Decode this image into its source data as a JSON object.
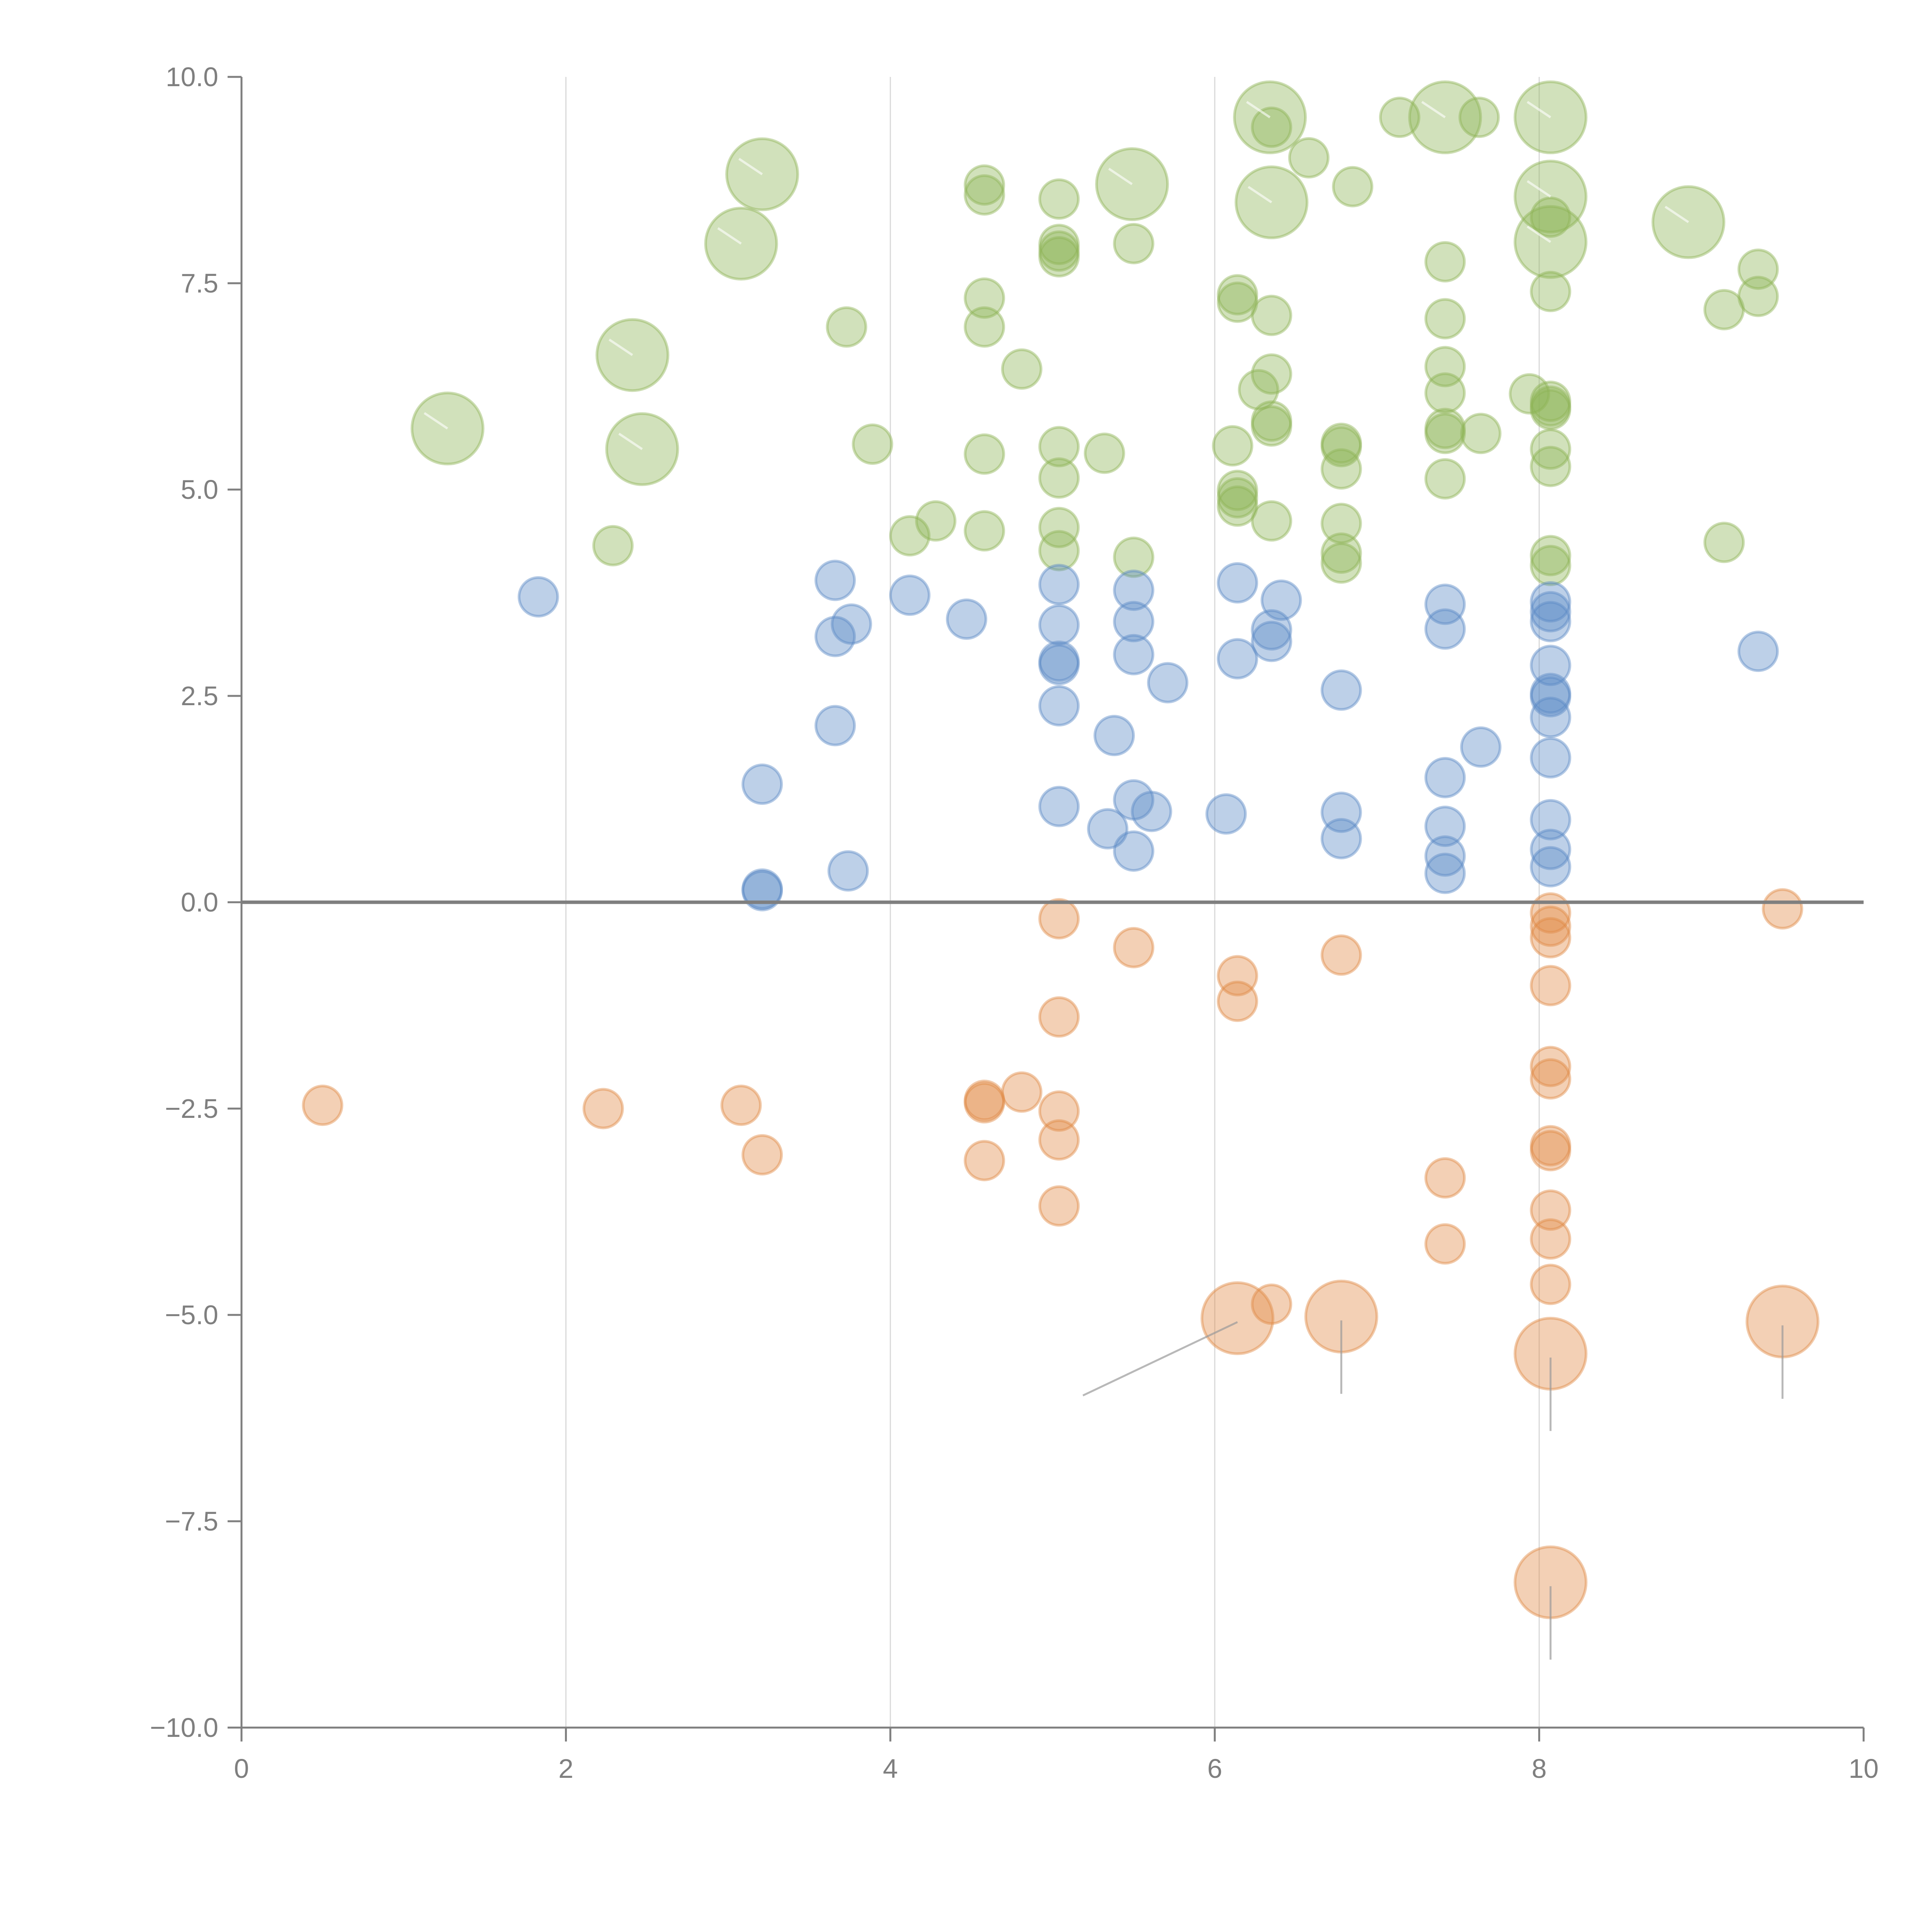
{
  "chart_data": {
    "type": "scatter",
    "title": "",
    "xlabel": "",
    "ylabel": "",
    "xlim": [
      0,
      10
    ],
    "ylim": [
      -10,
      10
    ],
    "x_ticks": [
      "0",
      "2",
      "4",
      "6",
      "8",
      "10"
    ],
    "x_tick_values": [
      0,
      2,
      4,
      6,
      8,
      10
    ],
    "y_ticks": [
      "10.0",
      "7.5",
      "5.0",
      "2.5",
      "0.0",
      "−2.5",
      "−5.0",
      "−7.5",
      "−10.0"
    ],
    "y_tick_values": [
      10,
      7.5,
      5,
      2.5,
      0,
      -2.5,
      -5,
      -7.5,
      -10
    ],
    "grid": "vertical",
    "reference_line_y": 0,
    "legend": "none",
    "point_format": [
      "x",
      "y",
      "size_class"
    ],
    "series": [
      {
        "name": "green",
        "color": "#8db356",
        "points": [
          [
            2.29,
            4.32,
            1
          ],
          [
            3.73,
            6.97,
            1
          ],
          [
            3.89,
            5.55,
            1
          ],
          [
            4.12,
            4.44,
            1
          ],
          [
            4.28,
            4.62,
            1
          ],
          [
            4.58,
            8.69,
            1
          ],
          [
            4.58,
            8.57,
            1
          ],
          [
            4.58,
            7.32,
            1
          ],
          [
            4.58,
            6.97,
            1
          ],
          [
            4.58,
            5.43,
            1
          ],
          [
            4.58,
            4.5,
            1
          ],
          [
            4.81,
            6.46,
            1
          ],
          [
            5.04,
            8.52,
            1
          ],
          [
            5.04,
            7.97,
            1
          ],
          [
            5.04,
            7.89,
            1
          ],
          [
            5.04,
            7.82,
            1
          ],
          [
            5.04,
            5.52,
            1
          ],
          [
            5.04,
            5.14,
            1
          ],
          [
            5.04,
            4.54,
            1
          ],
          [
            5.04,
            4.26,
            1
          ],
          [
            5.32,
            5.44,
            1
          ],
          [
            5.5,
            7.98,
            1
          ],
          [
            5.5,
            4.18,
            1
          ],
          [
            6.11,
            5.53,
            1
          ],
          [
            6.14,
            7.36,
            1
          ],
          [
            6.14,
            7.27,
            1
          ],
          [
            6.14,
            4.99,
            1
          ],
          [
            6.14,
            4.9,
            1
          ],
          [
            6.14,
            4.8,
            1
          ],
          [
            6.35,
            7.11,
            1
          ],
          [
            6.35,
            6.4,
            1
          ],
          [
            6.27,
            6.21,
            1
          ],
          [
            6.35,
            5.83,
            1
          ],
          [
            6.35,
            5.77,
            1
          ],
          [
            6.35,
            4.62,
            1
          ],
          [
            6.35,
            9.39,
            1
          ],
          [
            6.58,
            9.02,
            1
          ],
          [
            6.85,
            8.67,
            1
          ],
          [
            6.78,
            5.56,
            1
          ],
          [
            6.78,
            5.52,
            1
          ],
          [
            6.78,
            5.25,
            1
          ],
          [
            6.78,
            4.59,
            1
          ],
          [
            6.78,
            4.23,
            1
          ],
          [
            6.78,
            4.11,
            1
          ],
          [
            7.14,
            9.51,
            1
          ],
          [
            7.63,
            9.51,
            1
          ],
          [
            7.42,
            7.76,
            1
          ],
          [
            7.42,
            7.07,
            1
          ],
          [
            7.42,
            6.49,
            1
          ],
          [
            7.42,
            6.17,
            1
          ],
          [
            7.42,
            5.74,
            1
          ],
          [
            7.42,
            5.68,
            1
          ],
          [
            7.42,
            5.13,
            1
          ],
          [
            7.64,
            5.68,
            1
          ],
          [
            7.94,
            6.16,
            1
          ],
          [
            8.07,
            8.3,
            1
          ],
          [
            8.07,
            7.4,
            1
          ],
          [
            8.07,
            6.07,
            1
          ],
          [
            8.07,
            6.01,
            1
          ],
          [
            8.07,
            5.97,
            1
          ],
          [
            8.07,
            5.49,
            1
          ],
          [
            8.07,
            5.28,
            1
          ],
          [
            8.07,
            4.2,
            1
          ],
          [
            8.07,
            4.08,
            1
          ],
          [
            9.14,
            7.18,
            1
          ],
          [
            9.35,
            7.67,
            1
          ],
          [
            9.35,
            7.34,
            1
          ],
          [
            9.14,
            4.36,
            1
          ],
          [
            1.27,
            5.74,
            2
          ],
          [
            2.41,
            6.63,
            2
          ],
          [
            2.47,
            5.49,
            2
          ],
          [
            3.08,
            7.98,
            2
          ],
          [
            3.21,
            8.82,
            2
          ],
          [
            5.49,
            8.7,
            2
          ],
          [
            6.34,
            9.51,
            2
          ],
          [
            6.35,
            8.48,
            2
          ],
          [
            7.42,
            9.51,
            2
          ],
          [
            8.07,
            9.51,
            2
          ],
          [
            8.07,
            8.55,
            2
          ],
          [
            8.07,
            8.0,
            2
          ],
          [
            8.92,
            8.24,
            2
          ]
        ]
      },
      {
        "name": "blue",
        "color": "#5b8ac6",
        "points": [
          [
            1.83,
            3.7,
            1
          ],
          [
            3.21,
            1.43,
            1
          ],
          [
            3.21,
            0.16,
            1
          ],
          [
            3.21,
            0.14,
            1
          ],
          [
            3.66,
            3.9,
            1
          ],
          [
            3.66,
            3.22,
            1
          ],
          [
            3.66,
            2.14,
            1
          ],
          [
            3.76,
            3.37,
            1
          ],
          [
            3.74,
            0.38,
            1
          ],
          [
            4.12,
            3.72,
            1
          ],
          [
            4.47,
            3.43,
            1
          ],
          [
            5.04,
            3.85,
            1
          ],
          [
            5.04,
            3.36,
            1
          ],
          [
            5.04,
            2.92,
            1
          ],
          [
            5.04,
            2.88,
            1
          ],
          [
            5.04,
            2.38,
            1
          ],
          [
            5.04,
            1.16,
            1
          ],
          [
            5.34,
            0.89,
            1
          ],
          [
            5.38,
            2.02,
            1
          ],
          [
            5.5,
            3.78,
            1
          ],
          [
            5.5,
            3.4,
            1
          ],
          [
            5.5,
            3.0,
            1
          ],
          [
            5.5,
            1.24,
            1
          ],
          [
            5.61,
            1.1,
            1
          ],
          [
            5.5,
            0.62,
            1
          ],
          [
            5.71,
            2.66,
            1
          ],
          [
            6.07,
            1.07,
            1
          ],
          [
            6.14,
            3.87,
            1
          ],
          [
            6.14,
            2.95,
            1
          ],
          [
            6.35,
            3.3,
            1
          ],
          [
            6.35,
            3.16,
            1
          ],
          [
            6.41,
            3.66,
            1
          ],
          [
            6.78,
            2.57,
            1
          ],
          [
            6.78,
            1.09,
            1
          ],
          [
            6.78,
            0.77,
            1
          ],
          [
            7.42,
            3.61,
            1
          ],
          [
            7.42,
            3.31,
            1
          ],
          [
            7.42,
            1.51,
            1
          ],
          [
            7.42,
            0.92,
            1
          ],
          [
            7.42,
            0.56,
            1
          ],
          [
            7.42,
            0.35,
            1
          ],
          [
            7.64,
            1.88,
            1
          ],
          [
            8.07,
            3.64,
            1
          ],
          [
            8.07,
            3.52,
            1
          ],
          [
            8.07,
            3.4,
            1
          ],
          [
            8.07,
            2.87,
            1
          ],
          [
            8.07,
            2.53,
            1
          ],
          [
            8.07,
            2.49,
            1
          ],
          [
            8.07,
            2.24,
            1
          ],
          [
            8.07,
            1.75,
            1
          ],
          [
            8.07,
            1.0,
            1
          ],
          [
            8.07,
            0.64,
            1
          ],
          [
            8.07,
            0.43,
            1
          ],
          [
            9.35,
            3.04,
            1
          ]
        ]
      },
      {
        "name": "orange",
        "color": "#e08a45",
        "points": [
          [
            0.5,
            -2.46,
            1
          ],
          [
            2.23,
            -2.5,
            1
          ],
          [
            3.08,
            -2.46,
            1
          ],
          [
            3.21,
            -3.06,
            1
          ],
          [
            4.58,
            -2.4,
            1
          ],
          [
            4.58,
            -2.43,
            1
          ],
          [
            4.58,
            -3.13,
            1
          ],
          [
            4.81,
            -2.3,
            1
          ],
          [
            5.04,
            -0.2,
            1
          ],
          [
            5.04,
            -1.39,
            1
          ],
          [
            5.04,
            -2.53,
            1
          ],
          [
            5.04,
            -2.88,
            1
          ],
          [
            5.04,
            -3.68,
            1
          ],
          [
            5.5,
            -0.55,
            1
          ],
          [
            6.14,
            -0.89,
            1
          ],
          [
            6.14,
            -1.2,
            1
          ],
          [
            6.35,
            -4.87,
            1
          ],
          [
            6.78,
            -0.64,
            1
          ],
          [
            7.42,
            -3.34,
            1
          ],
          [
            7.42,
            -4.14,
            1
          ],
          [
            8.07,
            -0.13,
            1
          ],
          [
            8.07,
            -0.29,
            1
          ],
          [
            8.07,
            -0.43,
            1
          ],
          [
            8.07,
            -1.01,
            1
          ],
          [
            8.07,
            -1.99,
            1
          ],
          [
            8.07,
            -2.14,
            1
          ],
          [
            8.07,
            -2.95,
            1
          ],
          [
            8.07,
            -3.01,
            1
          ],
          [
            8.07,
            -3.73,
            1
          ],
          [
            8.07,
            -4.08,
            1
          ],
          [
            8.07,
            -4.63,
            1
          ],
          [
            9.5,
            -0.08,
            1
          ],
          [
            6.14,
            -5.04,
            2
          ],
          [
            6.78,
            -5.02,
            2
          ],
          [
            8.07,
            -5.47,
            2
          ],
          [
            9.5,
            -5.08,
            2
          ],
          [
            8.07,
            -8.24,
            2
          ]
        ]
      }
    ]
  }
}
